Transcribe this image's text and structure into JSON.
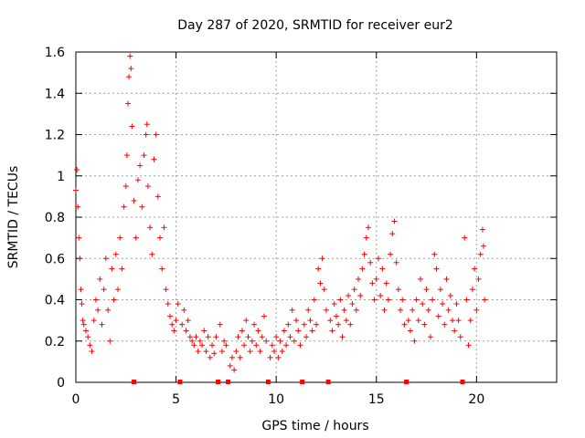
{
  "chart_data": {
    "type": "scatter",
    "title": "Day 287 of 2020, SRMTID for receiver eur2",
    "xlabel": "GPS time / hours",
    "ylabel": "SRMTID / TECUs",
    "xlim": [
      0,
      24
    ],
    "ylim": [
      0,
      1.6
    ],
    "x_ticks": [
      0,
      5,
      10,
      15,
      20
    ],
    "y_ticks": [
      0,
      0.2,
      0.4,
      0.6,
      0.8,
      1,
      1.2,
      1.4,
      1.6
    ],
    "x_tick_labels": [
      "0",
      "5",
      "10",
      "15",
      "20"
    ],
    "y_tick_labels": [
      "0",
      "0.2",
      "0.4",
      "0.6",
      "0.8",
      "1",
      "1.2",
      "1.4",
      "1.6"
    ],
    "grid": true,
    "marker": "+",
    "marker_color": "#ff0000",
    "gap_markers_x": [
      2.9,
      5.2,
      7.1,
      7.6,
      9.6,
      11.3,
      12.6,
      16.5,
      19.3
    ],
    "series": [
      {
        "name": "SRMTID",
        "points": [
          [
            0.0,
            0.93
          ],
          [
            0.05,
            1.03
          ],
          [
            0.1,
            0.85
          ],
          [
            0.15,
            0.7
          ],
          [
            0.2,
            0.6
          ],
          [
            0.25,
            0.45
          ],
          [
            0.3,
            0.38
          ],
          [
            0.35,
            0.3
          ],
          [
            0.4,
            0.28
          ],
          [
            0.5,
            0.25
          ],
          [
            0.6,
            0.22
          ],
          [
            0.7,
            0.18
          ],
          [
            0.8,
            0.15
          ],
          [
            0.9,
            0.3
          ],
          [
            1.0,
            0.4
          ],
          [
            1.1,
            0.35
          ],
          [
            1.2,
            0.5
          ],
          [
            1.3,
            0.28
          ],
          [
            1.4,
            0.45
          ],
          [
            1.5,
            0.6
          ],
          [
            1.6,
            0.35
          ],
          [
            1.7,
            0.2
          ],
          [
            1.8,
            0.55
          ],
          [
            1.9,
            0.4
          ],
          [
            2.0,
            0.62
          ],
          [
            2.1,
            0.45
          ],
          [
            2.2,
            0.7
          ],
          [
            2.3,
            0.55
          ],
          [
            2.4,
            0.85
          ],
          [
            2.5,
            0.95
          ],
          [
            2.55,
            1.1
          ],
          [
            2.6,
            1.35
          ],
          [
            2.65,
            1.48
          ],
          [
            2.7,
            1.58
          ],
          [
            2.75,
            1.52
          ],
          [
            2.8,
            1.24
          ],
          [
            2.9,
            0.88
          ],
          [
            3.0,
            0.7
          ],
          [
            3.1,
            0.98
          ],
          [
            3.2,
            1.05
          ],
          [
            3.3,
            0.85
          ],
          [
            3.4,
            1.1
          ],
          [
            3.5,
            1.2
          ],
          [
            3.55,
            1.25
          ],
          [
            3.6,
            0.95
          ],
          [
            3.7,
            0.75
          ],
          [
            3.8,
            0.62
          ],
          [
            3.9,
            1.08
          ],
          [
            4.0,
            1.2
          ],
          [
            4.1,
            0.9
          ],
          [
            4.2,
            0.7
          ],
          [
            4.3,
            0.55
          ],
          [
            4.4,
            0.75
          ],
          [
            4.5,
            0.45
          ],
          [
            4.6,
            0.38
          ],
          [
            4.7,
            0.32
          ],
          [
            4.8,
            0.28
          ],
          [
            4.9,
            0.25
          ],
          [
            5.0,
            0.3
          ],
          [
            5.1,
            0.38
          ],
          [
            5.3,
            0.28
          ],
          [
            5.4,
            0.35
          ],
          [
            5.5,
            0.25
          ],
          [
            5.6,
            0.3
          ],
          [
            5.7,
            0.22
          ],
          [
            5.8,
            0.2
          ],
          [
            5.9,
            0.18
          ],
          [
            6.0,
            0.22
          ],
          [
            6.1,
            0.15
          ],
          [
            6.2,
            0.2
          ],
          [
            6.3,
            0.18
          ],
          [
            6.4,
            0.25
          ],
          [
            6.5,
            0.15
          ],
          [
            6.6,
            0.22
          ],
          [
            6.7,
            0.12
          ],
          [
            6.8,
            0.18
          ],
          [
            6.9,
            0.14
          ],
          [
            7.0,
            0.22
          ],
          [
            7.2,
            0.28
          ],
          [
            7.3,
            0.15
          ],
          [
            7.4,
            0.2
          ],
          [
            7.5,
            0.18
          ],
          [
            7.7,
            0.08
          ],
          [
            7.8,
            0.12
          ],
          [
            7.9,
            0.06
          ],
          [
            8.0,
            0.15
          ],
          [
            8.1,
            0.22
          ],
          [
            8.2,
            0.12
          ],
          [
            8.3,
            0.25
          ],
          [
            8.4,
            0.18
          ],
          [
            8.5,
            0.3
          ],
          [
            8.6,
            0.22
          ],
          [
            8.7,
            0.15
          ],
          [
            8.8,
            0.2
          ],
          [
            8.9,
            0.28
          ],
          [
            9.0,
            0.18
          ],
          [
            9.1,
            0.25
          ],
          [
            9.2,
            0.15
          ],
          [
            9.3,
            0.22
          ],
          [
            9.4,
            0.32
          ],
          [
            9.5,
            0.2
          ],
          [
            9.7,
            0.12
          ],
          [
            9.8,
            0.18
          ],
          [
            9.9,
            0.15
          ],
          [
            10.0,
            0.22
          ],
          [
            10.1,
            0.12
          ],
          [
            10.2,
            0.2
          ],
          [
            10.3,
            0.15
          ],
          [
            10.4,
            0.25
          ],
          [
            10.5,
            0.18
          ],
          [
            10.6,
            0.28
          ],
          [
            10.7,
            0.22
          ],
          [
            10.8,
            0.35
          ],
          [
            10.9,
            0.2
          ],
          [
            11.0,
            0.3
          ],
          [
            11.1,
            0.25
          ],
          [
            11.2,
            0.18
          ],
          [
            11.4,
            0.28
          ],
          [
            11.5,
            0.22
          ],
          [
            11.6,
            0.35
          ],
          [
            11.7,
            0.3
          ],
          [
            11.8,
            0.25
          ],
          [
            11.9,
            0.4
          ],
          [
            12.0,
            0.28
          ],
          [
            12.1,
            0.55
          ],
          [
            12.2,
            0.48
          ],
          [
            12.3,
            0.6
          ],
          [
            12.4,
            0.45
          ],
          [
            12.5,
            0.35
          ],
          [
            12.7,
            0.3
          ],
          [
            12.8,
            0.25
          ],
          [
            12.9,
            0.38
          ],
          [
            13.0,
            0.32
          ],
          [
            13.1,
            0.28
          ],
          [
            13.2,
            0.4
          ],
          [
            13.3,
            0.22
          ],
          [
            13.4,
            0.35
          ],
          [
            13.5,
            0.3
          ],
          [
            13.6,
            0.42
          ],
          [
            13.7,
            0.28
          ],
          [
            13.8,
            0.38
          ],
          [
            13.9,
            0.45
          ],
          [
            14.0,
            0.35
          ],
          [
            14.1,
            0.5
          ],
          [
            14.2,
            0.42
          ],
          [
            14.3,
            0.55
          ],
          [
            14.4,
            0.62
          ],
          [
            14.5,
            0.7
          ],
          [
            14.6,
            0.75
          ],
          [
            14.7,
            0.58
          ],
          [
            14.8,
            0.48
          ],
          [
            14.9,
            0.4
          ],
          [
            15.0,
            0.5
          ],
          [
            15.1,
            0.6
          ],
          [
            15.2,
            0.42
          ],
          [
            15.3,
            0.55
          ],
          [
            15.4,
            0.35
          ],
          [
            15.5,
            0.48
          ],
          [
            15.6,
            0.4
          ],
          [
            15.7,
            0.62
          ],
          [
            15.8,
            0.72
          ],
          [
            15.9,
            0.78
          ],
          [
            16.0,
            0.58
          ],
          [
            16.1,
            0.45
          ],
          [
            16.2,
            0.35
          ],
          [
            16.3,
            0.4
          ],
          [
            16.4,
            0.28
          ],
          [
            16.6,
            0.3
          ],
          [
            16.7,
            0.25
          ],
          [
            16.8,
            0.35
          ],
          [
            16.9,
            0.2
          ],
          [
            17.0,
            0.4
          ],
          [
            17.1,
            0.3
          ],
          [
            17.2,
            0.5
          ],
          [
            17.3,
            0.38
          ],
          [
            17.4,
            0.28
          ],
          [
            17.5,
            0.45
          ],
          [
            17.6,
            0.35
          ],
          [
            17.7,
            0.22
          ],
          [
            17.8,
            0.4
          ],
          [
            17.9,
            0.62
          ],
          [
            18.0,
            0.55
          ],
          [
            18.1,
            0.32
          ],
          [
            18.2,
            0.45
          ],
          [
            18.3,
            0.38
          ],
          [
            18.4,
            0.28
          ],
          [
            18.5,
            0.5
          ],
          [
            18.6,
            0.35
          ],
          [
            18.7,
            0.42
          ],
          [
            18.8,
            0.3
          ],
          [
            18.9,
            0.25
          ],
          [
            19.0,
            0.38
          ],
          [
            19.1,
            0.3
          ],
          [
            19.2,
            0.22
          ],
          [
            19.4,
            0.7
          ],
          [
            19.5,
            0.4
          ],
          [
            19.6,
            0.18
          ],
          [
            19.7,
            0.3
          ],
          [
            19.8,
            0.45
          ],
          [
            19.9,
            0.55
          ],
          [
            20.0,
            0.35
          ],
          [
            20.1,
            0.5
          ],
          [
            20.2,
            0.62
          ],
          [
            20.3,
            0.74
          ],
          [
            20.35,
            0.66
          ],
          [
            20.4,
            0.4
          ]
        ]
      }
    ]
  }
}
